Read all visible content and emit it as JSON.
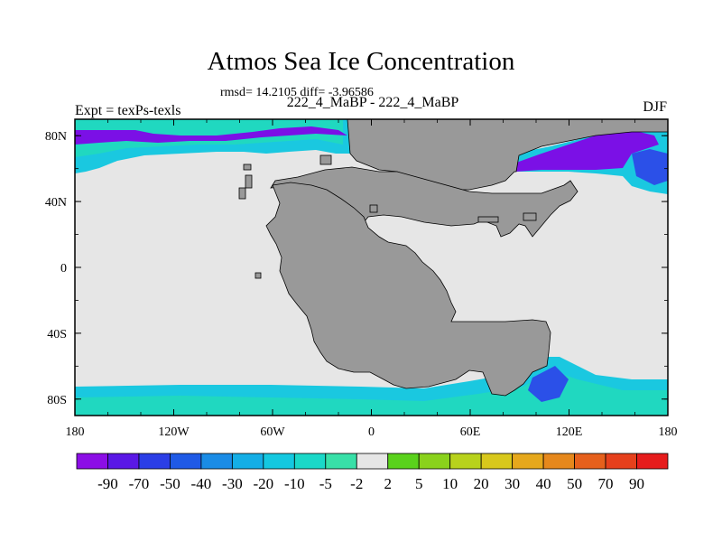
{
  "title": "Atmos Sea Ice Concentration",
  "stats_text": "rmsd= 14.2105 diff= -3.96586",
  "subtitle": "222_4_MaBP - 222_4_MaBP",
  "left_label": "Expt = texPs-texls",
  "right_label": "DJF",
  "colors": {
    "land": "#999999",
    "no_change": "#e6e6e6",
    "strong_loss": "#7b10e6",
    "moderate_loss": "#1ac8e0",
    "weak_loss": "#20d8c0",
    "deep_blue": "#2b50e8"
  },
  "chart_data": {
    "type": "heatmap",
    "projection": "cylindrical equidistant",
    "x_range": [
      -180,
      180
    ],
    "y_range": [
      -90,
      90
    ],
    "x_ticks": [
      "180",
      "120W",
      "60W",
      "0",
      "60E",
      "120E",
      "180"
    ],
    "y_ticks": [
      "80N",
      "40N",
      "0",
      "40S",
      "80S"
    ],
    "colorbar": {
      "levels": [
        "-90",
        "-70",
        "-50",
        "-40",
        "-30",
        "-20",
        "-10",
        "-5",
        "-2",
        "2",
        "5",
        "10",
        "20",
        "30",
        "40",
        "50",
        "70",
        "90"
      ],
      "colors": [
        "#8c0ee6",
        "#5a18e6",
        "#2b3ee6",
        "#1f5ae6",
        "#1a8ce6",
        "#14aee6",
        "#14c8e0",
        "#1ad8c8",
        "#38e0a8",
        "#e6e6e6",
        "#5ad21c",
        "#8ad21c",
        "#b8d21c",
        "#d8c81c",
        "#e6a81c",
        "#e6881c",
        "#e6601c",
        "#e6401c",
        "#e61c1c"
      ]
    }
  }
}
